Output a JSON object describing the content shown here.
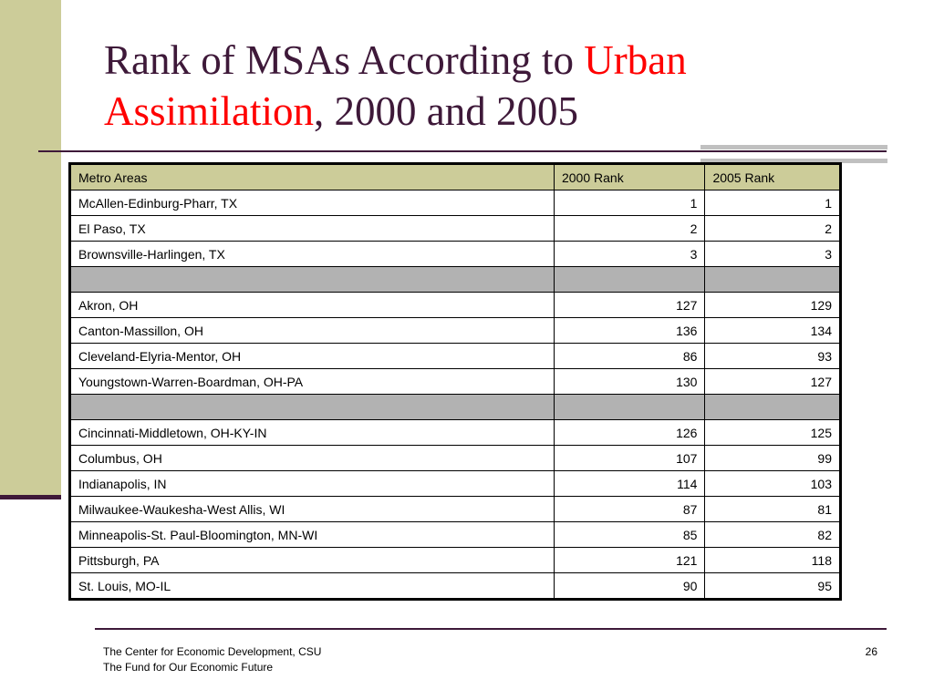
{
  "title": {
    "part1": "Rank of MSAs According to ",
    "accent": "Urban Assimilation",
    "part2": ", 2000 and 2005"
  },
  "table": {
    "headers": [
      "Metro Areas",
      "2000 Rank",
      "2005 Rank"
    ],
    "rows": [
      [
        "McAllen-Edinburg-Pharr, TX",
        "1",
        "1"
      ],
      [
        "El Paso, TX",
        "2",
        "2"
      ],
      [
        "Brownsville-Harlingen, TX",
        "3",
        "3"
      ],
      [
        "",
        "",
        ""
      ],
      [
        "Akron, OH",
        "127",
        "129"
      ],
      [
        "Canton-Massillon, OH",
        "136",
        "134"
      ],
      [
        "Cleveland-Elyria-Mentor, OH",
        "86",
        "93"
      ],
      [
        "Youngstown-Warren-Boardman, OH-PA",
        "130",
        "127"
      ],
      [
        "",
        "",
        ""
      ],
      [
        "Cincinnati-Middletown, OH-KY-IN",
        "126",
        "125"
      ],
      [
        "Columbus, OH",
        "107",
        "99"
      ],
      [
        "Indianapolis, IN",
        "114",
        "103"
      ],
      [
        "Milwaukee-Waukesha-West Allis, WI",
        "87",
        "81"
      ],
      [
        "Minneapolis-St. Paul-Bloomington, MN-WI",
        "85",
        "82"
      ],
      [
        "Pittsburgh, PA",
        "121",
        "118"
      ],
      [
        "St. Louis, MO-IL",
        "90",
        "95"
      ]
    ]
  },
  "footer": {
    "line1": "The Center for Economic Development, CSU",
    "line2": "The Fund for Our Economic Future",
    "page_number": "26"
  },
  "colors": {
    "title": "#3e1939",
    "accent": "#ff0000",
    "header_bg": "#cccc99",
    "separator_bg": "#b2b2b2"
  }
}
